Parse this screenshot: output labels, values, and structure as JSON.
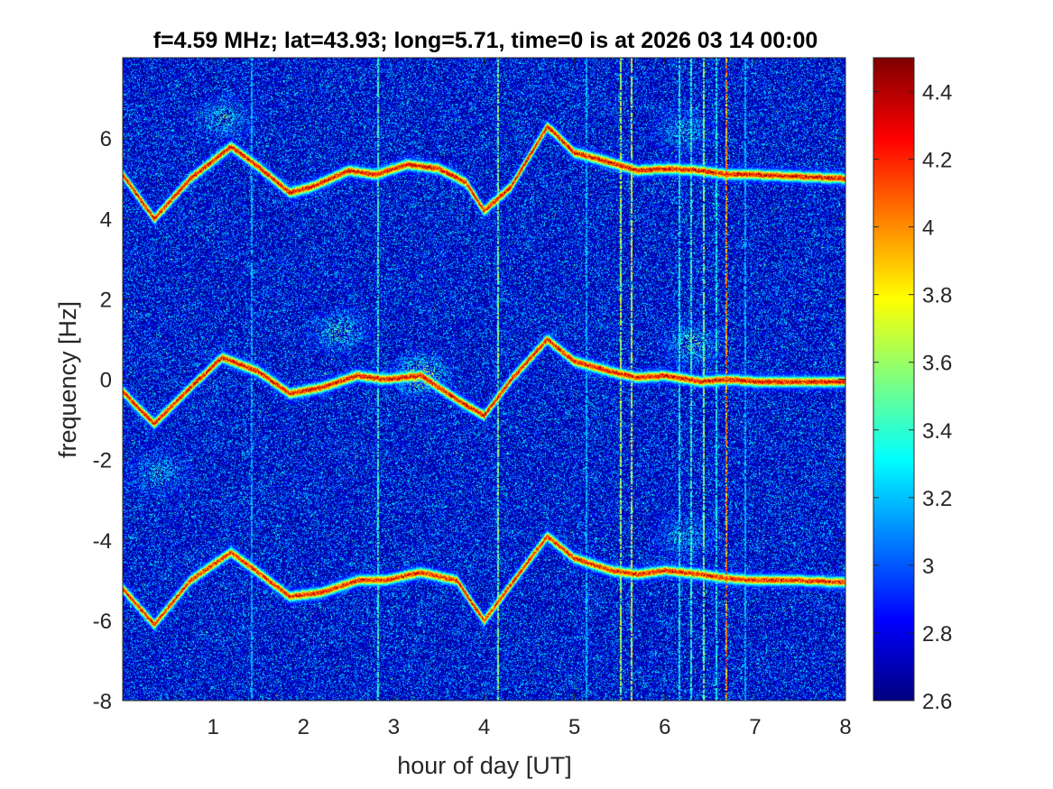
{
  "chart_data": {
    "type": "heatmap",
    "title": "f=4.59 MHz;  lat=43.93; long=5.71, time=0 is at 2026 03 14 00:00",
    "xlabel": "hour of day [UT]",
    "ylabel": "frequency [Hz]",
    "xlim": [
      0,
      8
    ],
    "ylim": [
      -8,
      8
    ],
    "xticks": [
      1,
      2,
      3,
      4,
      5,
      6,
      7,
      8
    ],
    "yticks": [
      -8,
      -6,
      -4,
      -2,
      0,
      2,
      4,
      6
    ],
    "colorbar": {
      "clim": [
        2.6,
        4.5
      ],
      "ticks": [
        2.8,
        3,
        3.2,
        3.4,
        3.6,
        3.8,
        4,
        4.2,
        4.4
      ],
      "colormap": "jet"
    },
    "background_level": 2.75,
    "traces": [
      {
        "points": [
          [
            0.0,
            5.1
          ],
          [
            0.35,
            4.0
          ],
          [
            0.75,
            5.0
          ],
          [
            1.2,
            5.8
          ],
          [
            1.5,
            5.3
          ],
          [
            1.85,
            4.65
          ],
          [
            2.1,
            4.8
          ],
          [
            2.5,
            5.2
          ],
          [
            2.8,
            5.1
          ],
          [
            3.15,
            5.35
          ],
          [
            3.5,
            5.25
          ],
          [
            3.8,
            4.9
          ],
          [
            4.0,
            4.2
          ],
          [
            4.3,
            4.8
          ],
          [
            4.7,
            6.3
          ],
          [
            5.0,
            5.65
          ],
          [
            5.4,
            5.4
          ],
          [
            5.7,
            5.2
          ],
          [
            6.0,
            5.25
          ],
          [
            6.4,
            5.2
          ],
          [
            6.7,
            5.1
          ],
          [
            7.0,
            5.1
          ],
          [
            7.5,
            5.05
          ],
          [
            8.0,
            5.0
          ]
        ],
        "level": 4.35,
        "spread": 0.08
      },
      {
        "points": [
          [
            0.0,
            -0.3
          ],
          [
            0.35,
            -1.1
          ],
          [
            0.75,
            -0.2
          ],
          [
            1.1,
            0.55
          ],
          [
            1.5,
            0.2
          ],
          [
            1.85,
            -0.35
          ],
          [
            2.2,
            -0.2
          ],
          [
            2.6,
            0.1
          ],
          [
            2.9,
            0.0
          ],
          [
            3.3,
            0.1
          ],
          [
            3.7,
            -0.5
          ],
          [
            4.0,
            -0.9
          ],
          [
            4.3,
            0.0
          ],
          [
            4.7,
            1.0
          ],
          [
            5.0,
            0.45
          ],
          [
            5.4,
            0.2
          ],
          [
            5.7,
            0.05
          ],
          [
            6.0,
            0.1
          ],
          [
            6.4,
            -0.05
          ],
          [
            6.7,
            0.0
          ],
          [
            7.0,
            -0.05
          ],
          [
            7.5,
            -0.05
          ],
          [
            8.0,
            -0.05
          ]
        ],
        "level": 4.35,
        "spread": 0.08
      },
      {
        "points": [
          [
            0.0,
            -5.2
          ],
          [
            0.35,
            -6.1
          ],
          [
            0.75,
            -5.0
          ],
          [
            1.2,
            -4.3
          ],
          [
            1.5,
            -4.8
          ],
          [
            1.85,
            -5.4
          ],
          [
            2.2,
            -5.3
          ],
          [
            2.6,
            -5.0
          ],
          [
            2.9,
            -5.0
          ],
          [
            3.3,
            -4.8
          ],
          [
            3.7,
            -5.0
          ],
          [
            4.0,
            -6.0
          ],
          [
            4.3,
            -5.1
          ],
          [
            4.7,
            -3.9
          ],
          [
            5.0,
            -4.45
          ],
          [
            5.4,
            -4.75
          ],
          [
            5.7,
            -4.85
          ],
          [
            6.0,
            -4.75
          ],
          [
            6.4,
            -4.85
          ],
          [
            6.7,
            -4.95
          ],
          [
            7.0,
            -5.0
          ],
          [
            7.5,
            -5.0
          ],
          [
            8.0,
            -5.05
          ]
        ],
        "level": 4.3,
        "spread": 0.08
      }
    ],
    "diffuse_patches": [
      {
        "x": 3.3,
        "y": 0.1,
        "level": 4.1
      },
      {
        "x": 2.4,
        "y": 1.2,
        "level": 3.7
      },
      {
        "x": 6.3,
        "y": 0.9,
        "level": 3.7
      },
      {
        "x": 0.4,
        "y": -2.3,
        "level": 3.5
      },
      {
        "x": 1.1,
        "y": 6.5,
        "level": 3.6
      },
      {
        "x": 6.2,
        "y": 6.2,
        "level": 3.5
      },
      {
        "x": 6.2,
        "y": -3.9,
        "level": 3.5
      }
    ],
    "vertical_streaks": [
      {
        "x": 1.42,
        "level": 3.3
      },
      {
        "x": 2.82,
        "level": 3.6
      },
      {
        "x": 4.14,
        "level": 3.8
      },
      {
        "x": 5.12,
        "level": 3.3
      },
      {
        "x": 5.5,
        "level": 3.9
      },
      {
        "x": 5.62,
        "level": 4.0
      },
      {
        "x": 6.15,
        "level": 3.5
      },
      {
        "x": 6.28,
        "level": 3.6
      },
      {
        "x": 6.42,
        "level": 3.8
      },
      {
        "x": 6.56,
        "level": 3.5
      },
      {
        "x": 6.67,
        "level": 4.4
      },
      {
        "x": 6.88,
        "level": 3.3
      }
    ]
  }
}
